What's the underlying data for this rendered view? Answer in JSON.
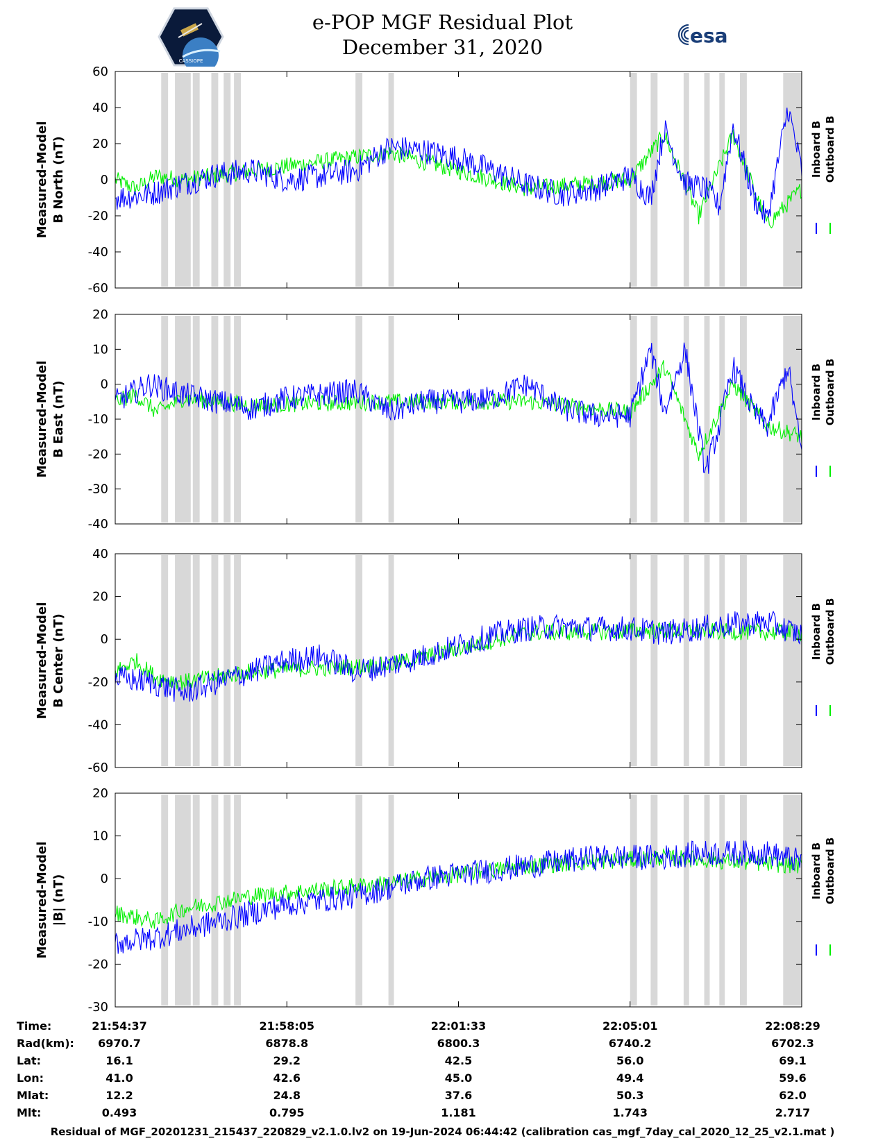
{
  "title": {
    "line1": "e-POP MGF Residual Plot",
    "line2": "December 31, 2020"
  },
  "logos": {
    "left_icon": "cassiope-mission-logo",
    "left_text": "CASSIOPE",
    "right_icon": "esa-logo",
    "right_text": "esa"
  },
  "footer": "Residual of MGF_20201231_215437_220829_v2.1.0.lv2 on 19-Jun-2024 06:44:42 (calibration cas_mgf_7day_cal_2020_12_25_v2.1.mat )",
  "colors": {
    "inboard": "#0000ff",
    "outboard": "#00ee00",
    "gap_shading": "#d8d8d8"
  },
  "chart_data": [
    {
      "type": "line",
      "ylabel": [
        "Measured-Model",
        "B North (nT)"
      ],
      "ylim": [
        -60,
        60
      ],
      "yticks": [
        -60,
        -40,
        -20,
        0,
        20,
        40,
        60
      ],
      "legend": [
        "Inboard B",
        "Outboard B"
      ],
      "legend_position": "right",
      "grid": false,
      "series": [
        {
          "name": "Inboard B",
          "x": [
            0,
            0.05,
            0.1,
            0.15,
            0.2,
            0.25,
            0.3,
            0.35,
            0.4,
            0.45,
            0.5,
            0.55,
            0.6,
            0.65,
            0.7,
            0.75,
            0.78,
            0.8,
            0.83,
            0.86,
            0.88,
            0.9,
            0.93,
            0.95,
            0.98,
            1.0
          ],
          "y": [
            -10,
            -8,
            -2,
            3,
            5,
            0,
            2,
            5,
            18,
            16,
            12,
            5,
            -3,
            -8,
            -5,
            2,
            -10,
            28,
            -2,
            -5,
            -15,
            30,
            -10,
            -22,
            40,
            5
          ]
        },
        {
          "name": "Outboard B",
          "x": [
            0,
            0.03,
            0.06,
            0.1,
            0.2,
            0.4,
            0.6,
            0.75,
            0.8,
            0.85,
            0.9,
            0.95,
            1.0
          ],
          "y": [
            0,
            -5,
            2,
            0,
            5,
            15,
            -5,
            0,
            25,
            -20,
            25,
            -25,
            -5
          ]
        }
      ],
      "gray_bands": [
        [
          0.067,
          0.077
        ],
        [
          0.087,
          0.11
        ],
        [
          0.113,
          0.123
        ],
        [
          0.14,
          0.15
        ],
        [
          0.158,
          0.168
        ],
        [
          0.173,
          0.183
        ],
        [
          0.35,
          0.36
        ],
        [
          0.398,
          0.406
        ],
        [
          0.75,
          0.76
        ],
        [
          0.78,
          0.79
        ],
        [
          0.828,
          0.836
        ],
        [
          0.858,
          0.866
        ],
        [
          0.88,
          0.888
        ],
        [
          0.91,
          0.92
        ],
        [
          0.973,
          1.0
        ]
      ]
    },
    {
      "type": "line",
      "ylabel": [
        "Measured-Model",
        "B East (nT)"
      ],
      "ylim": [
        -40,
        20
      ],
      "yticks": [
        -40,
        -30,
        -20,
        -10,
        0,
        10,
        20
      ],
      "legend": [
        "Inboard B",
        "Outboard B"
      ],
      "legend_position": "right",
      "grid": false,
      "series": [
        {
          "name": "Inboard B",
          "x": [
            0,
            0.05,
            0.1,
            0.15,
            0.2,
            0.25,
            0.3,
            0.35,
            0.4,
            0.45,
            0.5,
            0.55,
            0.6,
            0.65,
            0.7,
            0.75,
            0.78,
            0.8,
            0.83,
            0.86,
            0.88,
            0.9,
            0.93,
            0.95,
            0.98,
            1.0
          ],
          "y": [
            -5,
            0,
            -3,
            -5,
            -7,
            -4,
            -3,
            -2,
            -8,
            -5,
            -5,
            -4,
            0,
            -7,
            -9,
            -9,
            10,
            -8,
            10,
            -25,
            -12,
            5,
            -8,
            -12,
            5,
            -20
          ]
        },
        {
          "name": "Outboard B",
          "x": [
            0,
            0.03,
            0.06,
            0.1,
            0.2,
            0.4,
            0.6,
            0.75,
            0.8,
            0.85,
            0.9,
            0.95,
            1.0
          ],
          "y": [
            -5,
            -3,
            -8,
            -4,
            -6,
            -5,
            -5,
            -8,
            5,
            -20,
            0,
            -12,
            -15
          ]
        }
      ],
      "gray_bands": [
        [
          0.067,
          0.077
        ],
        [
          0.087,
          0.11
        ],
        [
          0.113,
          0.123
        ],
        [
          0.14,
          0.15
        ],
        [
          0.158,
          0.168
        ],
        [
          0.173,
          0.183
        ],
        [
          0.35,
          0.36
        ],
        [
          0.398,
          0.406
        ],
        [
          0.75,
          0.76
        ],
        [
          0.78,
          0.79
        ],
        [
          0.828,
          0.836
        ],
        [
          0.858,
          0.866
        ],
        [
          0.88,
          0.888
        ],
        [
          0.91,
          0.92
        ],
        [
          0.973,
          1.0
        ]
      ]
    },
    {
      "type": "line",
      "ylabel": [
        "Measured-Model",
        "B Center (nT)"
      ],
      "ylim": [
        -60,
        40
      ],
      "yticks": [
        -60,
        -40,
        -20,
        0,
        20,
        40
      ],
      "legend": [
        "Inboard B",
        "Outboard B"
      ],
      "legend_position": "right",
      "grid": false,
      "series": [
        {
          "name": "Inboard B",
          "x": [
            0,
            0.05,
            0.1,
            0.15,
            0.2,
            0.25,
            0.3,
            0.35,
            0.4,
            0.45,
            0.5,
            0.55,
            0.6,
            0.65,
            0.7,
            0.75,
            0.8,
            0.85,
            0.9,
            0.95,
            1.0
          ],
          "y": [
            -18,
            -20,
            -25,
            -20,
            -15,
            -10,
            -8,
            -15,
            -12,
            -8,
            -3,
            2,
            5,
            6,
            5,
            5,
            3,
            5,
            7,
            8,
            2
          ]
        },
        {
          "name": "Outboard B",
          "x": [
            0,
            0.03,
            0.06,
            0.1,
            0.2,
            0.4,
            0.6,
            0.8,
            1.0
          ],
          "y": [
            -15,
            -10,
            -18,
            -20,
            -15,
            -12,
            3,
            4,
            3
          ]
        }
      ],
      "gray_bands": [
        [
          0.067,
          0.077
        ],
        [
          0.087,
          0.11
        ],
        [
          0.113,
          0.123
        ],
        [
          0.14,
          0.15
        ],
        [
          0.158,
          0.168
        ],
        [
          0.173,
          0.183
        ],
        [
          0.35,
          0.36
        ],
        [
          0.398,
          0.406
        ],
        [
          0.75,
          0.76
        ],
        [
          0.78,
          0.79
        ],
        [
          0.828,
          0.836
        ],
        [
          0.858,
          0.866
        ],
        [
          0.88,
          0.888
        ],
        [
          0.91,
          0.92
        ],
        [
          0.973,
          1.0
        ]
      ]
    },
    {
      "type": "line",
      "ylabel": [
        "Measured-Model",
        "|B| (nT)"
      ],
      "ylim": [
        -30,
        20
      ],
      "yticks": [
        -30,
        -20,
        -10,
        0,
        10,
        20
      ],
      "legend": [
        "Inboard B",
        "Outboard B"
      ],
      "legend_position": "right",
      "grid": false,
      "series": [
        {
          "name": "Inboard B",
          "x": [
            0,
            0.05,
            0.1,
            0.15,
            0.2,
            0.25,
            0.3,
            0.35,
            0.4,
            0.45,
            0.5,
            0.55,
            0.6,
            0.65,
            0.7,
            0.75,
            0.8,
            0.85,
            0.9,
            0.95,
            1.0
          ],
          "y": [
            -15,
            -14,
            -12,
            -10,
            -8,
            -6,
            -5,
            -4,
            -2,
            0,
            1,
            2,
            3,
            4,
            5,
            5,
            5,
            6,
            6,
            6,
            4
          ]
        },
        {
          "name": "Outboard B",
          "x": [
            0,
            0.03,
            0.06,
            0.1,
            0.2,
            0.4,
            0.6,
            0.8,
            1.0
          ],
          "y": [
            -8,
            -9,
            -10,
            -7,
            -4,
            -1,
            3,
            5,
            3
          ]
        }
      ],
      "gray_bands": [
        [
          0.067,
          0.077
        ],
        [
          0.087,
          0.11
        ],
        [
          0.113,
          0.123
        ],
        [
          0.14,
          0.15
        ],
        [
          0.158,
          0.168
        ],
        [
          0.173,
          0.183
        ],
        [
          0.35,
          0.36
        ],
        [
          0.398,
          0.406
        ],
        [
          0.75,
          0.76
        ],
        [
          0.78,
          0.79
        ],
        [
          0.828,
          0.836
        ],
        [
          0.858,
          0.866
        ],
        [
          0.88,
          0.888
        ],
        [
          0.91,
          0.92
        ],
        [
          0.973,
          1.0
        ]
      ]
    }
  ],
  "table": {
    "rows": [
      {
        "label": "Time:",
        "values": [
          "21:54:37",
          "21:58:05",
          "22:01:33",
          "22:05:01",
          "22:08:29"
        ]
      },
      {
        "label": "Rad(km):",
        "values": [
          "6970.7",
          "6878.8",
          "6800.3",
          "6740.2",
          "6702.3"
        ]
      },
      {
        "label": "Lat:",
        "values": [
          "16.1",
          "29.2",
          "42.5",
          "56.0",
          "69.1"
        ]
      },
      {
        "label": "Lon:",
        "values": [
          "41.0",
          "42.6",
          "45.0",
          "49.4",
          "59.6"
        ]
      },
      {
        "label": "Mlat:",
        "values": [
          "12.2",
          "24.8",
          "37.6",
          "50.3",
          "62.0"
        ]
      },
      {
        "label": "Mlt:",
        "values": [
          "0.493",
          "0.795",
          "1.181",
          "1.743",
          "2.717"
        ]
      }
    ]
  }
}
